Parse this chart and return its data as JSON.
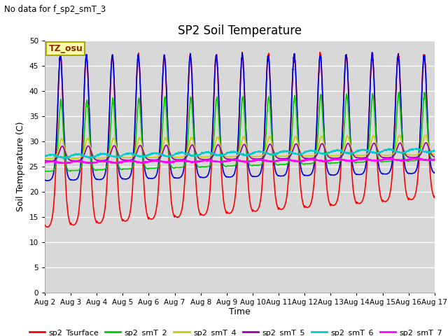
{
  "title": "SP2 Soil Temperature",
  "ylabel": "Soil Temperature (C)",
  "xlabel": "Time",
  "no_data_text": "No data for f_sp2_smT_3",
  "tz_label": "TZ_osu",
  "ylim": [
    0,
    50
  ],
  "yticks": [
    0,
    5,
    10,
    15,
    20,
    25,
    30,
    35,
    40,
    45,
    50
  ],
  "x_tick_labels": [
    "Aug 2",
    "Aug 3",
    "Aug 4",
    "Aug 5",
    "Aug 6",
    "Aug 7",
    "Aug 8",
    "Aug 9",
    "Aug 10",
    "Aug 11",
    "Aug 12",
    "Aug 13",
    "Aug 14",
    "Aug 15",
    "Aug 16",
    "Aug 17"
  ],
  "background_color": "#d8d8d8",
  "series": {
    "sp2_Tsurface": {
      "color": "#ff0000",
      "linewidth": 1.2
    },
    "sp2_smT_1": {
      "color": "#0000dd",
      "linewidth": 1.2
    },
    "sp2_smT_2": {
      "color": "#00cc00",
      "linewidth": 1.2
    },
    "sp2_smT_4": {
      "color": "#cccc00",
      "linewidth": 1.2
    },
    "sp2_smT_5": {
      "color": "#9900aa",
      "linewidth": 1.2
    },
    "sp2_smT_6": {
      "color": "#00cccc",
      "linewidth": 1.2
    },
    "sp2_smT_7": {
      "color": "#ff00ff",
      "linewidth": 1.5
    }
  }
}
